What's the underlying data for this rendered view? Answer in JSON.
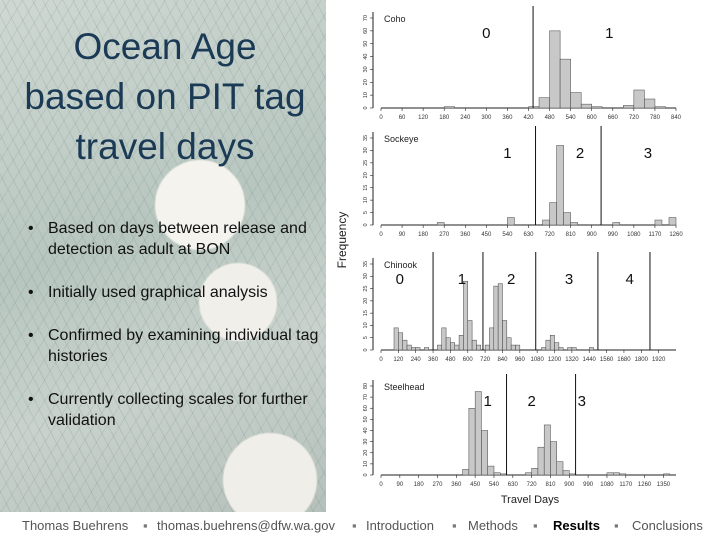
{
  "slide": {
    "title": "Ocean Age\nbased on PIT tag\ntravel days",
    "bullets": [
      "Based on days between release and detection as adult at BON",
      "Initially used graphical analysis",
      "Confirmed by examining individual tag histories",
      "Currently collecting scales for further validation"
    ]
  },
  "footer": {
    "author": "Thomas Buehrens",
    "email": "thomas.buehrens@dfw.wa.gov",
    "nav": [
      "Introduction",
      "Methods",
      "Results",
      "Conclusions"
    ],
    "active": "Results",
    "separator": "▪"
  },
  "chart_data": {
    "type": "bar",
    "ylabel": "Frequency",
    "xlabel": "Travel Days",
    "colors": {
      "bar_fill": "#c8c8c8",
      "bar_stroke": "#444444",
      "line": "#111111"
    },
    "panels": [
      {
        "name": "Coho",
        "x_ticks": [
          "0",
          "60",
          "120",
          "180",
          "240",
          "300",
          "360",
          "420",
          "480",
          "540",
          "600",
          "660",
          "720",
          "780",
          "840"
        ],
        "xlim": [
          0,
          840
        ],
        "ylim": [
          0,
          70
        ],
        "y_ticks": [
          "0",
          "10",
          "20",
          "30",
          "40",
          "50",
          "60",
          "70"
        ],
        "bin_width": 30,
        "bins": [
          [
            180,
            1
          ],
          [
            420,
            1
          ],
          [
            450,
            8
          ],
          [
            480,
            60
          ],
          [
            510,
            38
          ],
          [
            540,
            12
          ],
          [
            570,
            3
          ],
          [
            600,
            1
          ],
          [
            690,
            2
          ],
          [
            720,
            14
          ],
          [
            750,
            7
          ],
          [
            780,
            1
          ]
        ],
        "dividers": [
          433
        ],
        "age_labels": [
          {
            "label": "0",
            "x": 300
          },
          {
            "label": "1",
            "x": 650
          }
        ]
      },
      {
        "name": "Sockeye",
        "x_ticks": [
          "0",
          "90",
          "180",
          "270",
          "360",
          "450",
          "540",
          "630",
          "720",
          "810",
          "900",
          "990",
          "1080",
          "1170",
          "1260"
        ],
        "xlim": [
          0,
          1260
        ],
        "ylim": [
          0,
          35
        ],
        "y_ticks": [
          "0",
          "5",
          "10",
          "15",
          "20",
          "25",
          "30",
          "35"
        ],
        "bin_width": 30,
        "bins": [
          [
            240,
            1
          ],
          [
            540,
            3
          ],
          [
            690,
            2
          ],
          [
            720,
            9
          ],
          [
            750,
            32
          ],
          [
            780,
            5
          ],
          [
            810,
            1
          ],
          [
            990,
            1
          ],
          [
            1170,
            2
          ],
          [
            1230,
            3
          ]
        ],
        "dividers": [
          660,
          940
        ],
        "age_labels": [
          {
            "label": "1",
            "x": 540
          },
          {
            "label": "2",
            "x": 850
          },
          {
            "label": "3",
            "x": 1140
          }
        ]
      },
      {
        "name": "Chinook",
        "x_ticks": [
          "0",
          "120",
          "240",
          "360",
          "480",
          "600",
          "720",
          "840",
          "960",
          "1080",
          "1200",
          "1320",
          "1440",
          "1560",
          "1680",
          "1800",
          "1920"
        ],
        "xlim": [
          0,
          2040
        ],
        "ylim": [
          0,
          35
        ],
        "y_ticks": [
          "0",
          "5",
          "10",
          "15",
          "20",
          "25",
          "30",
          "35"
        ],
        "bin_width": 30,
        "bins": [
          [
            90,
            9
          ],
          [
            120,
            7
          ],
          [
            150,
            4
          ],
          [
            180,
            2
          ],
          [
            210,
            1
          ],
          [
            240,
            1
          ],
          [
            300,
            1
          ],
          [
            390,
            2
          ],
          [
            420,
            9
          ],
          [
            450,
            5
          ],
          [
            480,
            3
          ],
          [
            510,
            2
          ],
          [
            540,
            6
          ],
          [
            570,
            28
          ],
          [
            600,
            12
          ],
          [
            630,
            4
          ],
          [
            660,
            2
          ],
          [
            720,
            2
          ],
          [
            750,
            9
          ],
          [
            780,
            26
          ],
          [
            810,
            27
          ],
          [
            840,
            12
          ],
          [
            870,
            5
          ],
          [
            900,
            2
          ],
          [
            930,
            2
          ],
          [
            1110,
            1
          ],
          [
            1140,
            4
          ],
          [
            1170,
            6
          ],
          [
            1200,
            3
          ],
          [
            1230,
            1
          ],
          [
            1290,
            1
          ],
          [
            1320,
            1
          ],
          [
            1440,
            1
          ]
        ],
        "dividers": [
          360,
          705,
          1070,
          1500,
          1860
        ],
        "age_labels": [
          {
            "label": "0",
            "x": 130
          },
          {
            "label": "1",
            "x": 560
          },
          {
            "label": "2",
            "x": 900
          },
          {
            "label": "3",
            "x": 1300
          },
          {
            "label": "4",
            "x": 1720
          }
        ]
      },
      {
        "name": "Steelhead",
        "x_ticks": [
          "0",
          "90",
          "180",
          "270",
          "360",
          "450",
          "540",
          "630",
          "720",
          "810",
          "900",
          "990",
          "1080",
          "1170",
          "1260",
          "1350"
        ],
        "xlim": [
          0,
          1410
        ],
        "ylim": [
          0,
          80
        ],
        "y_ticks": [
          "0",
          "10",
          "20",
          "30",
          "40",
          "50",
          "60",
          "70",
          "80"
        ],
        "bin_width": 30,
        "bins": [
          [
            390,
            5
          ],
          [
            420,
            60
          ],
          [
            450,
            75
          ],
          [
            480,
            40
          ],
          [
            510,
            8
          ],
          [
            540,
            2
          ],
          [
            570,
            1
          ],
          [
            690,
            2
          ],
          [
            720,
            6
          ],
          [
            750,
            25
          ],
          [
            780,
            45
          ],
          [
            810,
            30
          ],
          [
            840,
            12
          ],
          [
            870,
            4
          ],
          [
            900,
            1
          ],
          [
            1080,
            2
          ],
          [
            1110,
            2
          ],
          [
            1140,
            1
          ],
          [
            1350,
            1
          ]
        ],
        "dividers": [
          600,
          930
        ],
        "age_labels": [
          {
            "label": "1",
            "x": 510
          },
          {
            "label": "2",
            "x": 720
          },
          {
            "label": "3",
            "x": 960
          }
        ]
      }
    ]
  }
}
